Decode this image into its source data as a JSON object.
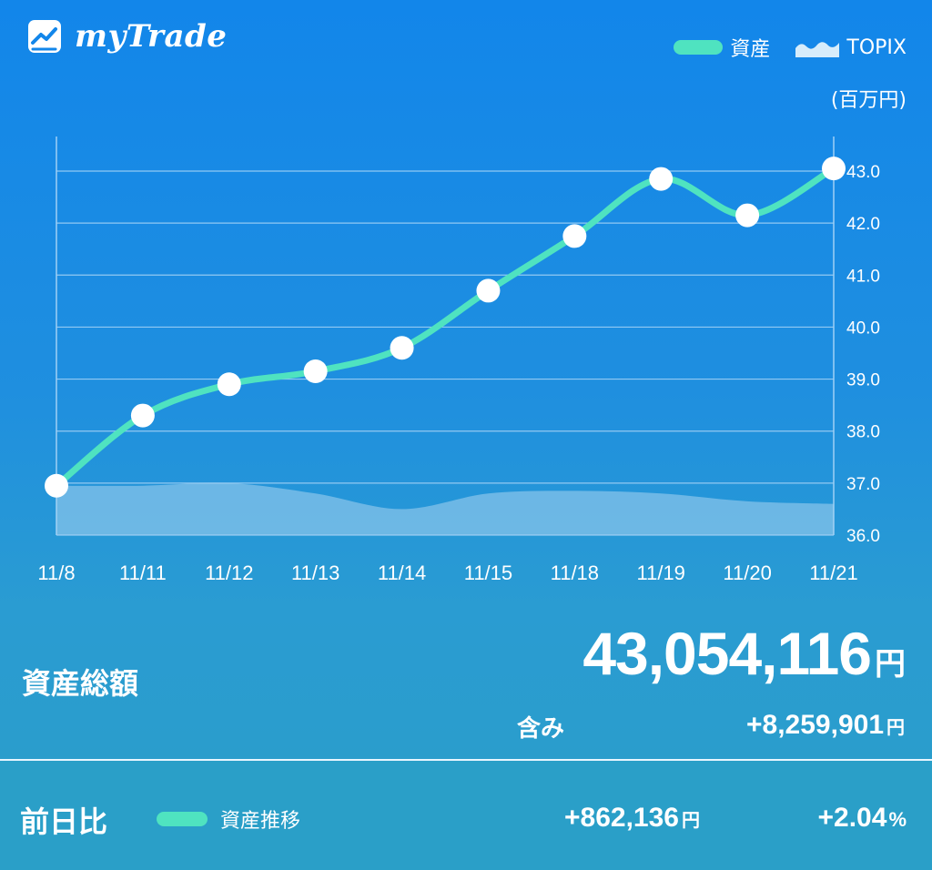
{
  "app": {
    "name": "myTrade"
  },
  "legend": {
    "asset_label": "資産",
    "topix_label": "TOPIX"
  },
  "unit_label": "(百万円)",
  "summary": {
    "total_label": "資産総額",
    "total_value": "43,054,116",
    "total_unit": "円",
    "included_label": "含み",
    "included_value": "+8,259,901",
    "included_unit": "円"
  },
  "footer": {
    "day_label": "前日比",
    "legend_label": "資産推移",
    "day_value": "+862,136",
    "day_unit": "円",
    "day_pct": "+2.04",
    "day_pct_unit": "%"
  },
  "colors": {
    "asset_line": "#4fe3c0",
    "marker": "#ffffff",
    "topix_fill": "#a8d4f0",
    "grid": "#9fd0f5"
  },
  "chart_data": {
    "type": "line",
    "categories": [
      "11/8",
      "11/11",
      "11/12",
      "11/13",
      "11/14",
      "11/15",
      "11/18",
      "11/19",
      "11/20",
      "11/21"
    ],
    "series": [
      {
        "name": "資産",
        "type": "line",
        "values": [
          36.95,
          38.3,
          38.9,
          39.15,
          39.6,
          40.7,
          41.75,
          42.85,
          42.15,
          43.05
        ]
      },
      {
        "name": "TOPIX",
        "type": "area",
        "values": [
          36.95,
          36.95,
          37.0,
          36.8,
          36.5,
          36.8,
          36.85,
          36.8,
          36.65,
          36.6
        ]
      }
    ],
    "ylim": [
      36.0,
      43.0
    ],
    "yticks": [
      "36.0",
      "37.0",
      "38.0",
      "39.0",
      "40.0",
      "41.0",
      "42.0",
      "43.0"
    ],
    "y_axis_position": "right",
    "grid": true
  }
}
